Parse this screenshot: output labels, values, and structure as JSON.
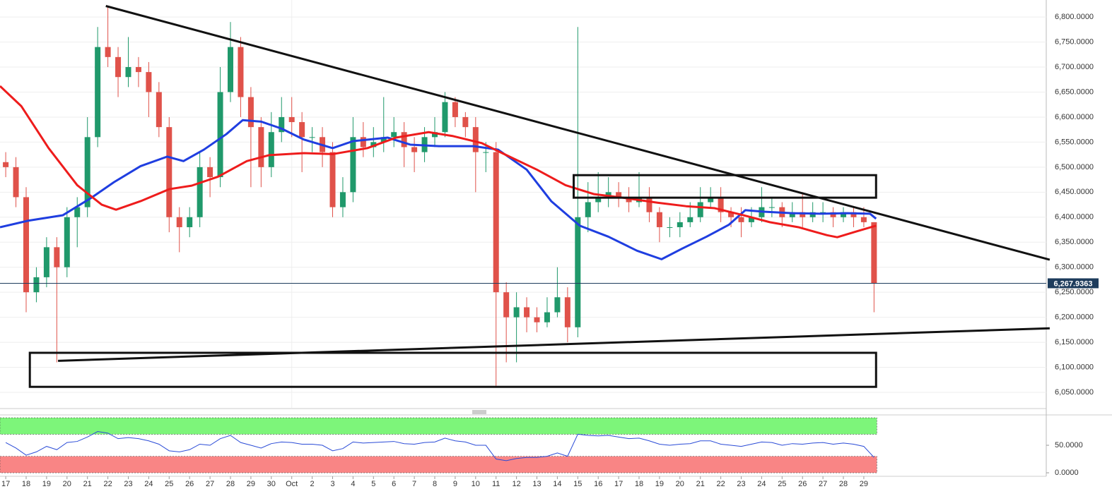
{
  "chart_data": [
    {
      "type": "candlestick",
      "x": [
        0,
        0.5,
        1,
        1.5,
        2,
        2.5,
        3,
        3.5,
        4,
        4.5,
        5,
        5.5,
        6,
        6.5,
        7,
        7.5,
        8,
        8.5,
        9,
        9.5,
        10,
        10.5,
        11,
        11.5,
        12,
        12.5,
        13,
        13.5,
        14,
        14.5,
        15,
        15.5,
        16,
        16.5,
        17,
        17.5,
        18,
        18.5,
        19,
        19.5,
        20,
        20.5,
        21,
        21.5,
        22,
        22.5,
        23,
        23.5,
        24,
        24.5,
        25,
        25.5,
        26,
        26.5,
        27,
        27.5,
        28,
        28.5,
        29,
        29.5,
        30,
        30.5,
        31,
        31.5,
        32,
        32.5,
        33,
        33.5,
        34,
        34.5,
        35,
        35.5,
        36,
        36.5,
        37,
        37.5,
        38,
        38.5,
        39,
        39.5,
        40,
        40.5,
        41,
        41.5,
        42,
        42.5
      ],
      "open": [
        6510,
        6500,
        6440,
        6250,
        6280,
        6340,
        6300,
        6400,
        6420,
        6560,
        6740,
        6720,
        6680,
        6700,
        6690,
        6650,
        6580,
        6400,
        6380,
        6400,
        6500,
        6480,
        6650,
        6740,
        6640,
        6580,
        6500,
        6570,
        6600,
        6590,
        6560,
        6560,
        6530,
        6420,
        6450,
        6560,
        6540,
        6550,
        6560,
        6570,
        6540,
        6530,
        6560,
        6570,
        6630,
        6600,
        6580,
        6530,
        6530,
        6250,
        6200,
        6220,
        6200,
        6190,
        6210,
        6240,
        6180,
        6400,
        6430,
        6440,
        6450,
        6440,
        6430,
        6440,
        6410,
        6380,
        6380,
        6390,
        6400,
        6430,
        6440,
        6410,
        6400,
        6390,
        6400,
        6420,
        6420,
        6400,
        6410,
        6400,
        6410,
        6410,
        6400,
        6410,
        6400,
        6390
      ],
      "high": [
        6530,
        6520,
        6460,
        6300,
        6360,
        6360,
        6420,
        6440,
        6600,
        6780,
        6820,
        6740,
        6760,
        6720,
        6710,
        6670,
        6600,
        6420,
        6420,
        6530,
        6520,
        6700,
        6790,
        6760,
        6660,
        6600,
        6610,
        6640,
        6640,
        6610,
        6580,
        6580,
        6550,
        6480,
        6600,
        6590,
        6580,
        6640,
        6600,
        6590,
        6560,
        6580,
        6600,
        6650,
        6640,
        6610,
        6600,
        6550,
        6550,
        6270,
        6250,
        6240,
        6220,
        6240,
        6300,
        6260,
        6780,
        6470,
        6490,
        6480,
        6470,
        6460,
        6490,
        6460,
        6420,
        6400,
        6410,
        6430,
        6460,
        6460,
        6460,
        6420,
        6420,
        6420,
        6460,
        6440,
        6430,
        6430,
        6450,
        6430,
        6430,
        6420,
        6420,
        6420,
        6420,
        6390
      ],
      "low": [
        6480,
        6420,
        6210,
        6230,
        6260,
        6110,
        6280,
        6340,
        6400,
        6540,
        6700,
        6640,
        6660,
        6660,
        6600,
        6560,
        6370,
        6330,
        6360,
        6380,
        6440,
        6460,
        6630,
        6600,
        6460,
        6460,
        6480,
        6550,
        6560,
        6490,
        6530,
        6500,
        6400,
        6400,
        6430,
        6520,
        6520,
        6530,
        6540,
        6500,
        6490,
        6510,
        6540,
        6560,
        6580,
        6560,
        6450,
        6490,
        6063,
        6110,
        6110,
        6170,
        6170,
        6180,
        6200,
        6150,
        6160,
        6370,
        6410,
        6420,
        6420,
        6410,
        6420,
        6390,
        6350,
        6360,
        6360,
        6380,
        6390,
        6420,
        6390,
        6380,
        6360,
        6380,
        6390,
        6400,
        6380,
        6390,
        6380,
        6390,
        6390,
        6380,
        6390,
        6380,
        6380,
        6210
      ],
      "close": [
        6500,
        6440,
        6250,
        6280,
        6340,
        6300,
        6400,
        6420,
        6560,
        6740,
        6720,
        6680,
        6700,
        6690,
        6650,
        6580,
        6400,
        6380,
        6400,
        6500,
        6480,
        6650,
        6740,
        6640,
        6580,
        6500,
        6570,
        6600,
        6590,
        6560,
        6560,
        6530,
        6420,
        6450,
        6560,
        6540,
        6550,
        6560,
        6570,
        6540,
        6530,
        6560,
        6570,
        6630,
        6600,
        6580,
        6530,
        6530,
        6250,
        6200,
        6220,
        6200,
        6190,
        6210,
        6240,
        6180,
        6400,
        6430,
        6440,
        6450,
        6440,
        6430,
        6440,
        6410,
        6380,
        6380,
        6390,
        6400,
        6430,
        6440,
        6410,
        6400,
        6390,
        6400,
        6420,
        6420,
        6400,
        6410,
        6400,
        6410,
        6410,
        6400,
        6410,
        6400,
        6390,
        6268
      ],
      "up_color": "#20996b",
      "down_color": "#e0524a",
      "overlays": [
        {
          "color": "#1f3ee0",
          "x": [
            -0.28,
            1.1,
            2.8,
            4.2,
            5.3,
            6.6,
            7.9,
            8.7,
            9.7,
            10.8,
            11.6,
            12.5,
            13.5,
            14.6,
            16.0,
            17.0,
            18.7,
            19.8,
            21.2,
            22.9,
            24.1,
            25.5,
            26.7,
            28.1,
            29.5,
            30.9,
            32.1,
            33.1,
            34.3,
            35.4,
            36.2,
            37.1,
            38.5,
            39.9,
            41.2,
            42.3,
            42.6
          ],
          "values": [
            6380,
            6393,
            6404,
            6439,
            6470,
            6502,
            6521,
            6512,
            6535,
            6566,
            6594,
            6591,
            6577,
            6555,
            6538,
            6552,
            6559,
            6545,
            6542,
            6542,
            6535,
            6495,
            6432,
            6383,
            6361,
            6333,
            6316,
            6337,
            6361,
            6385,
            6414,
            6411,
            6408,
            6407,
            6408,
            6407,
            6397
          ]
        },
        {
          "color": "#ee1c1c",
          "x": [
            -0.28,
            0.76,
            2.1,
            3.5,
            4.7,
            5.4,
            6.6,
            8.0,
            9.1,
            10.4,
            11.8,
            12.9,
            14.6,
            16.0,
            17.7,
            19.1,
            20.7,
            21.9,
            23.3,
            24.3,
            26.0,
            27.4,
            28.8,
            30.2,
            31.9,
            33.3,
            34.7,
            36.1,
            37.4,
            38.8,
            40.2,
            40.7,
            41.6,
            42.6
          ],
          "values": [
            6662,
            6622,
            6538,
            6464,
            6425,
            6415,
            6432,
            6456,
            6463,
            6481,
            6512,
            6524,
            6528,
            6526,
            6538,
            6559,
            6570,
            6562,
            6548,
            6528,
            6495,
            6464,
            6446,
            6439,
            6429,
            6422,
            6418,
            6404,
            6390,
            6380,
            6364,
            6360,
            6371,
            6383
          ]
        }
      ],
      "drawings": {
        "lines": [
          {
            "x": [
              4.9,
              51.1
            ],
            "y": [
              6822,
              6315
            ]
          },
          {
            "x": [
              2.56,
              51.1
            ],
            "y": [
              6113,
              6178
            ]
          }
        ],
        "boxes": [
          {
            "x": [
              1.18,
              42.6
            ],
            "y": [
              6061,
              6129
            ]
          },
          {
            "x": [
              27.8,
              42.6
            ],
            "y": [
              6439,
              6484
            ]
          }
        ]
      },
      "last_price": {
        "value": 6267.9363,
        "label": "6,267.9363"
      },
      "xlim": [
        -0.28,
        50.93
      ],
      "ylim": [
        6019,
        6834
      ],
      "yticks": [
        {
          "value": 6050,
          "label": "6,050.0000"
        },
        {
          "value": 6100,
          "label": "6,100.0000"
        },
        {
          "value": 6150,
          "label": "6,150.0000"
        },
        {
          "value": 6200,
          "label": "6,200.0000"
        },
        {
          "value": 6250,
          "label": "6,250.0000"
        },
        {
          "value": 6300,
          "label": "6,300.0000"
        },
        {
          "value": 6350,
          "label": "6,350.0000"
        },
        {
          "value": 6400,
          "label": "6,400.0000"
        },
        {
          "value": 6450,
          "label": "6,450.0000"
        },
        {
          "value": 6500,
          "label": "6,500.0000"
        },
        {
          "value": 6550,
          "label": "6,550.0000"
        },
        {
          "value": 6600,
          "label": "6,600.0000"
        },
        {
          "value": 6650,
          "label": "6,650.0000"
        },
        {
          "value": 6700,
          "label": "6,700.0000"
        },
        {
          "value": 6750,
          "label": "6,750.0000"
        },
        {
          "value": 6800,
          "label": "6,800.0000"
        }
      ],
      "grid": true
    },
    {
      "type": "line",
      "x": [
        0,
        0.5,
        1,
        1.5,
        2,
        2.5,
        3,
        3.5,
        4,
        4.5,
        5,
        5.5,
        6,
        6.5,
        7,
        7.5,
        8,
        8.5,
        9,
        9.5,
        10,
        10.5,
        11,
        11.5,
        12,
        12.5,
        13,
        13.5,
        14,
        14.5,
        15,
        15.5,
        16,
        16.5,
        17,
        17.5,
        18,
        18.5,
        19,
        19.5,
        20,
        20.5,
        21,
        21.5,
        22,
        22.5,
        23,
        23.5,
        24,
        24.5,
        25,
        25.5,
        26,
        26.5,
        27,
        27.5,
        28,
        28.5,
        29,
        29.5,
        30,
        30.5,
        31,
        31.5,
        32,
        32.5,
        33,
        33.5,
        34,
        34.5,
        35,
        35.5,
        36,
        36.5,
        37,
        37.5,
        38,
        38.5,
        39,
        39.5,
        40,
        40.5,
        41,
        41.5,
        42,
        42.5
      ],
      "values": [
        55,
        45,
        32,
        38,
        48,
        42,
        55,
        57,
        65,
        75,
        72,
        62,
        64,
        62,
        58,
        52,
        40,
        38,
        42,
        52,
        50,
        62,
        68,
        55,
        50,
        45,
        53,
        56,
        55,
        52,
        52,
        50,
        40,
        44,
        56,
        54,
        55,
        56,
        57,
        53,
        52,
        55,
        56,
        63,
        58,
        56,
        50,
        50,
        25,
        22,
        26,
        28,
        28,
        30,
        36,
        30,
        70,
        68,
        67,
        68,
        65,
        62,
        63,
        58,
        52,
        50,
        52,
        53,
        58,
        58,
        52,
        50,
        48,
        52,
        56,
        55,
        50,
        53,
        52,
        54,
        55,
        52,
        54,
        52,
        48,
        28
      ],
      "color": "#2a4bd7",
      "zones": [
        {
          "range": [
            70,
            100
          ],
          "color": "#7df57a"
        },
        {
          "range": [
            0,
            30
          ],
          "color": "#f98585"
        }
      ],
      "xlim": [
        -0.28,
        50.93
      ],
      "ylim": [
        -3.8,
        102.6
      ],
      "yticks": [
        {
          "value": 0,
          "label": "0.0000"
        },
        {
          "value": 50,
          "label": "50.0000"
        }
      ],
      "xticks": [
        {
          "value": 0,
          "label": "17"
        },
        {
          "value": 1,
          "label": "18"
        },
        {
          "value": 2,
          "label": "19"
        },
        {
          "value": 3,
          "label": "20"
        },
        {
          "value": 4,
          "label": "21"
        },
        {
          "value": 5,
          "label": "22"
        },
        {
          "value": 6,
          "label": "23"
        },
        {
          "value": 7,
          "label": "24"
        },
        {
          "value": 8,
          "label": "25"
        },
        {
          "value": 9,
          "label": "26"
        },
        {
          "value": 10,
          "label": "27"
        },
        {
          "value": 11,
          "label": "28"
        },
        {
          "value": 12,
          "label": "29"
        },
        {
          "value": 13,
          "label": "30"
        },
        {
          "value": 14,
          "label": "Oct"
        },
        {
          "value": 15,
          "label": "2"
        },
        {
          "value": 16,
          "label": "3"
        },
        {
          "value": 17,
          "label": "4"
        },
        {
          "value": 18,
          "label": "5"
        },
        {
          "value": 19,
          "label": "6"
        },
        {
          "value": 20,
          "label": "7"
        },
        {
          "value": 21,
          "label": "8"
        },
        {
          "value": 22,
          "label": "9"
        },
        {
          "value": 23,
          "label": "10"
        },
        {
          "value": 24,
          "label": "11"
        },
        {
          "value": 25,
          "label": "12"
        },
        {
          "value": 26,
          "label": "13"
        },
        {
          "value": 27,
          "label": "14"
        },
        {
          "value": 28,
          "label": "15"
        },
        {
          "value": 29,
          "label": "16"
        },
        {
          "value": 30,
          "label": "17"
        },
        {
          "value": 31,
          "label": "18"
        },
        {
          "value": 32,
          "label": "19"
        },
        {
          "value": 33,
          "label": "20"
        },
        {
          "value": 34,
          "label": "21"
        },
        {
          "value": 35,
          "label": "22"
        },
        {
          "value": 36,
          "label": "23"
        },
        {
          "value": 37,
          "label": "24"
        },
        {
          "value": 38,
          "label": "25"
        },
        {
          "value": 39,
          "label": "26"
        },
        {
          "value": 40,
          "label": "27"
        },
        {
          "value": 41,
          "label": "28"
        },
        {
          "value": 42,
          "label": "29"
        }
      ]
    }
  ]
}
